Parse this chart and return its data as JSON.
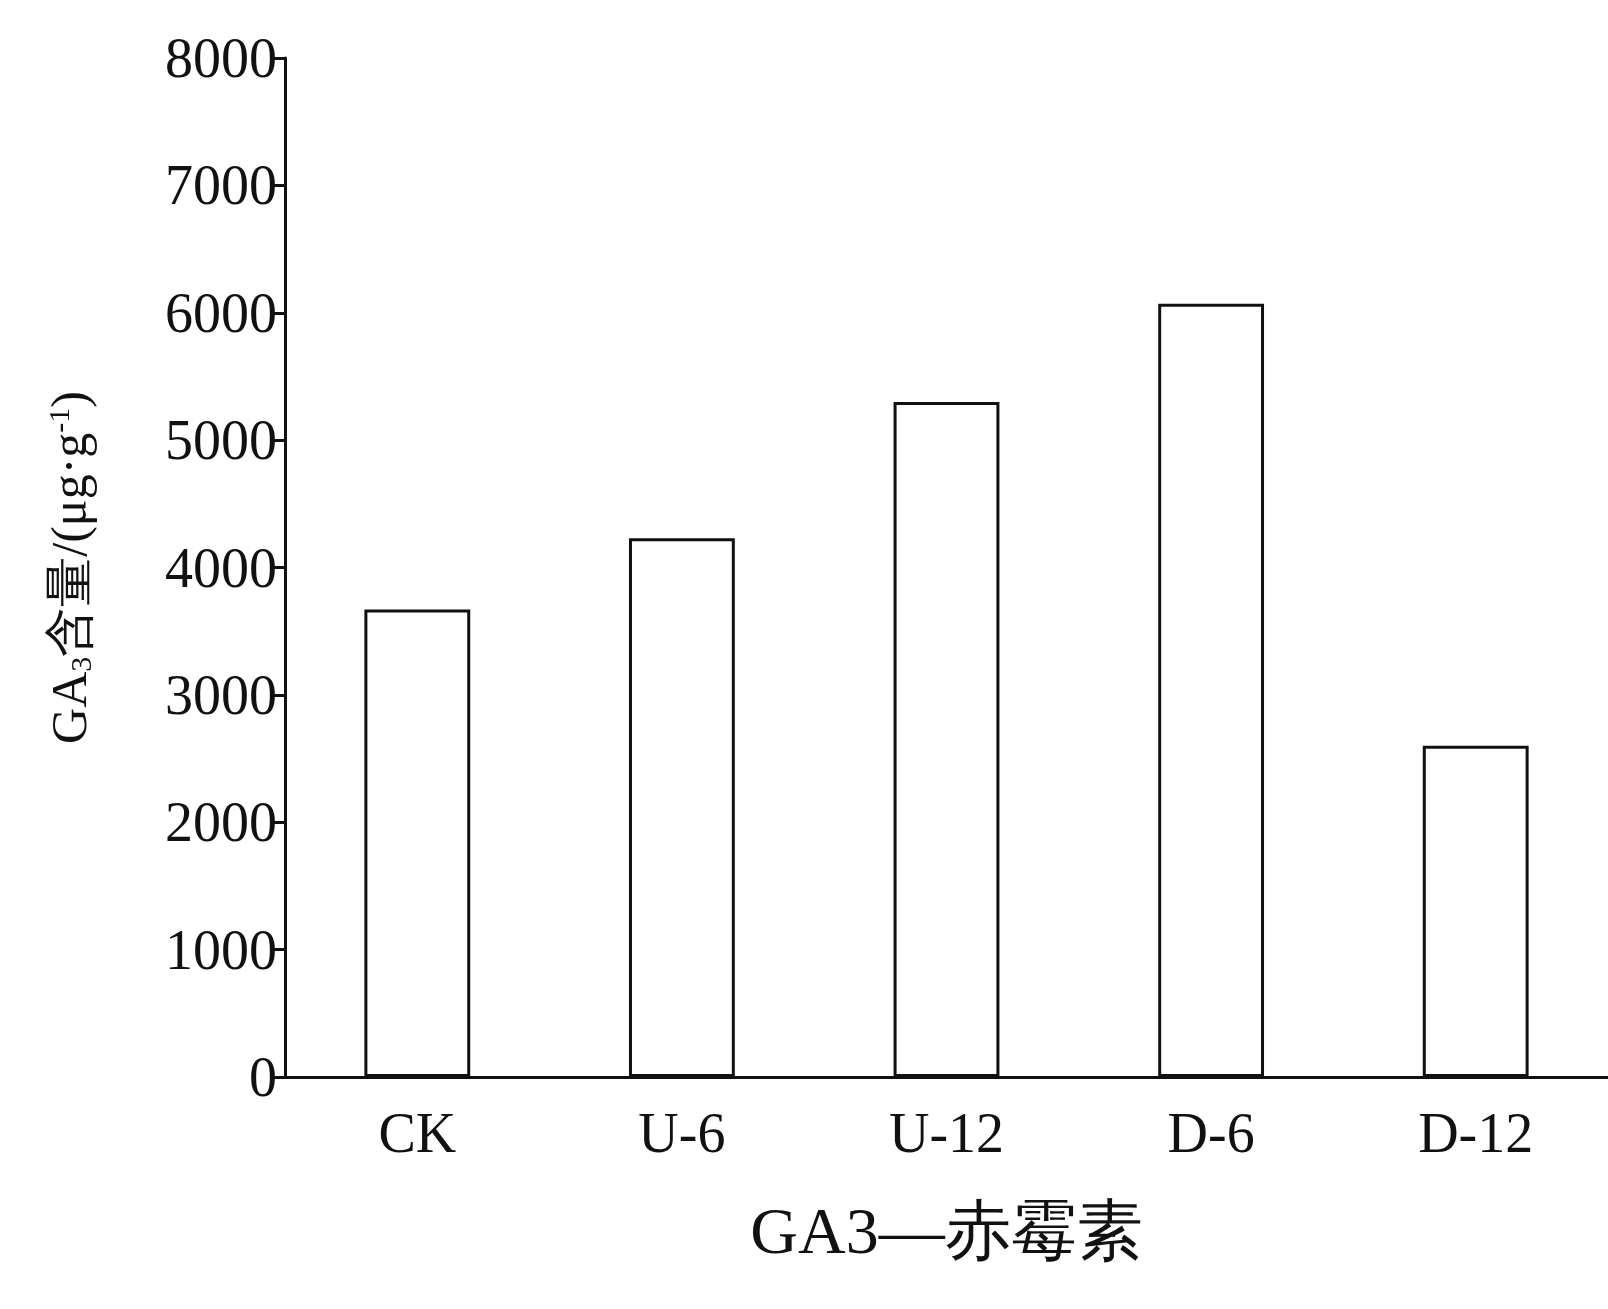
{
  "chart_data": {
    "type": "bar",
    "xlabel": "GA3—赤霉素",
    "ylabel": "GA$_{3}$含量/(μg·g$^{-1}$)",
    "categories": [
      "CK",
      "U-6",
      "U-12",
      "D-6",
      "D-12"
    ],
    "values": [
      3670,
      4230,
      5300,
      6070,
      2600
    ],
    "color": "#ffffff",
    "ylim": [
      0,
      8000
    ],
    "yticks": [
      0,
      1000,
      2000,
      3000,
      4000,
      5000,
      6000,
      7000,
      8000
    ],
    "grid": false
  }
}
